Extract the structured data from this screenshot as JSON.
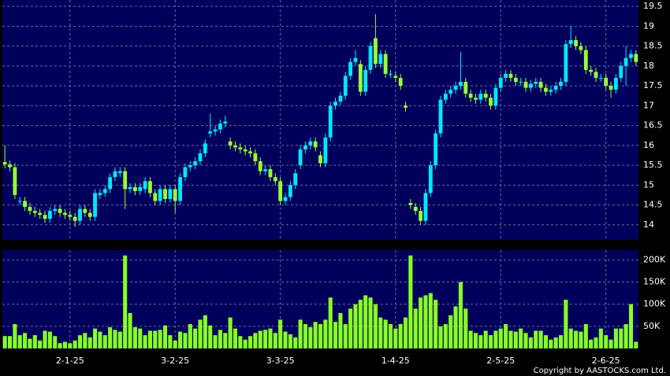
{
  "chart_data": [
    {
      "type": "candlestick",
      "categories": [
        null,
        null,
        null,
        null,
        null,
        null,
        null,
        null,
        null,
        null,
        null,
        null,
        null,
        "2-1-25",
        null,
        null,
        null,
        null,
        null,
        null,
        null,
        null,
        null,
        null,
        null,
        null,
        null,
        null,
        null,
        null,
        null,
        null,
        null,
        null,
        "3-2-25",
        null,
        null,
        null,
        null,
        null,
        null,
        null,
        null,
        null,
        null,
        null,
        null,
        null,
        null,
        null,
        null,
        null,
        null,
        null,
        null,
        "3-3-25",
        null,
        null,
        null,
        null,
        null,
        null,
        null,
        null,
        null,
        null,
        null,
        null,
        null,
        null,
        null,
        null,
        null,
        null,
        null,
        null,
        null,
        null,
        "1-4-25",
        null,
        null,
        null,
        null,
        null,
        null,
        null,
        null,
        null,
        null,
        null,
        null,
        null,
        null,
        null,
        null,
        null,
        null,
        null,
        null,
        "2-5-25",
        null,
        null,
        null,
        null,
        null,
        null,
        null,
        null,
        null,
        null,
        null,
        null,
        null,
        null,
        null,
        null,
        null,
        null,
        null,
        null,
        "2-6-25",
        null,
        null,
        null,
        null,
        null,
        null
      ],
      "open": [
        15.58,
        15.52,
        15.45,
        14.6,
        14.6,
        14.45,
        14.35,
        14.3,
        14.25,
        14.15,
        14.35,
        14.4,
        14.3,
        14.25,
        14.2,
        14.1,
        14.4,
        14.3,
        14.2,
        14.75,
        14.8,
        14.9,
        15.2,
        15.3,
        15.35,
        14.9,
        14.95,
        14.85,
        14.9,
        15.1,
        14.8,
        14.6,
        14.9,
        14.65,
        14.9,
        14.6,
        15.2,
        15.45,
        15.5,
        15.6,
        15.8,
        16.3,
        16.35,
        16.4,
        16.55,
        16.1,
        16.0,
        15.95,
        15.9,
        15.85,
        15.8,
        15.6,
        15.35,
        15.4,
        15.2,
        15.1,
        14.6,
        14.7,
        15.0,
        15.5,
        15.9,
        16.0,
        16.1,
        15.75,
        15.55,
        16.2,
        17.0,
        17.1,
        17.25,
        17.75,
        18.1,
        18.05,
        17.35,
        17.9,
        18.7,
        18.05,
        18.3,
        17.8,
        17.75,
        17.7,
        17.0,
        14.55,
        14.45,
        14.35,
        14.1,
        14.8,
        15.5,
        16.3,
        17.15,
        17.3,
        17.4,
        17.5,
        17.6,
        17.3,
        17.2,
        17.15,
        17.3,
        17.2,
        17.0,
        17.45,
        17.7,
        17.8,
        17.7,
        17.6,
        17.6,
        17.45,
        17.55,
        17.6,
        17.45,
        17.35,
        17.4,
        17.5,
        17.6,
        18.55,
        18.65,
        18.5,
        18.4,
        17.9,
        17.85,
        17.7,
        17.7,
        17.5,
        17.4,
        17.7,
        18.0,
        18.2,
        18.3
      ],
      "high": [
        16.0,
        15.62,
        15.55,
        14.7,
        14.7,
        14.55,
        14.45,
        14.4,
        14.35,
        14.45,
        14.5,
        14.5,
        14.4,
        14.35,
        14.3,
        14.5,
        14.5,
        14.4,
        14.9,
        14.9,
        15.0,
        15.3,
        15.45,
        15.45,
        15.45,
        15.05,
        15.05,
        15.05,
        15.2,
        15.2,
        14.9,
        15.0,
        15.0,
        15.0,
        15.0,
        15.3,
        15.55,
        15.6,
        15.7,
        15.9,
        16.15,
        16.8,
        16.5,
        16.65,
        16.75,
        16.2,
        16.1,
        16.05,
        16.0,
        15.95,
        15.9,
        15.7,
        15.5,
        15.5,
        15.3,
        15.2,
        14.8,
        15.1,
        15.4,
        16.0,
        16.1,
        16.2,
        16.2,
        15.85,
        16.3,
        17.1,
        17.2,
        17.35,
        17.85,
        18.2,
        18.4,
        18.15,
        18.0,
        18.6,
        19.3,
        18.4,
        18.4,
        17.9,
        17.85,
        17.8,
        17.1,
        14.65,
        14.55,
        14.45,
        14.9,
        15.6,
        16.4,
        17.25,
        17.4,
        17.5,
        17.6,
        18.35,
        17.7,
        17.4,
        17.3,
        17.4,
        17.4,
        17.3,
        17.55,
        17.8,
        17.9,
        17.9,
        17.8,
        17.7,
        17.7,
        17.65,
        17.7,
        17.7,
        17.55,
        17.5,
        17.6,
        17.7,
        18.65,
        19.0,
        18.75,
        18.6,
        18.5,
        18.0,
        17.95,
        17.8,
        17.8,
        17.6,
        17.8,
        18.1,
        18.5,
        18.4,
        18.4
      ],
      "low": [
        15.42,
        15.35,
        14.65,
        14.5,
        14.35,
        14.25,
        14.2,
        14.15,
        14.05,
        14.05,
        14.25,
        14.2,
        14.15,
        14.1,
        13.95,
        14.0,
        14.2,
        14.1,
        14.1,
        14.65,
        14.7,
        14.8,
        15.1,
        15.2,
        14.4,
        14.8,
        14.75,
        14.75,
        14.8,
        14.7,
        14.5,
        14.5,
        14.55,
        14.55,
        14.3,
        14.5,
        15.1,
        15.35,
        15.4,
        15.5,
        15.7,
        16.2,
        16.25,
        16.3,
        16.45,
        15.9,
        15.85,
        15.8,
        15.75,
        15.7,
        15.5,
        15.25,
        15.25,
        15.1,
        15.0,
        14.5,
        14.5,
        14.6,
        14.9,
        15.4,
        15.8,
        15.9,
        15.85,
        15.45,
        15.45,
        16.1,
        16.9,
        17.0,
        17.15,
        17.65,
        18.0,
        17.25,
        17.25,
        17.8,
        17.95,
        17.95,
        17.7,
        17.7,
        17.6,
        17.4,
        16.85,
        14.4,
        14.25,
        14.0,
        14.0,
        14.7,
        15.4,
        16.2,
        17.05,
        17.2,
        17.3,
        17.4,
        17.2,
        17.1,
        17.05,
        17.05,
        17.1,
        16.9,
        16.9,
        17.35,
        17.6,
        17.6,
        17.5,
        17.5,
        17.35,
        17.35,
        17.45,
        17.35,
        17.25,
        17.25,
        17.3,
        17.4,
        17.5,
        18.45,
        18.4,
        18.3,
        17.8,
        17.75,
        17.6,
        17.6,
        17.4,
        17.2,
        17.3,
        17.6,
        17.5,
        18.1,
        18.0
      ],
      "close": [
        15.52,
        15.45,
        14.75,
        14.6,
        14.45,
        14.35,
        14.3,
        14.25,
        14.15,
        14.35,
        14.4,
        14.3,
        14.25,
        14.2,
        14.1,
        14.4,
        14.3,
        14.2,
        14.8,
        14.8,
        14.9,
        15.2,
        15.35,
        15.35,
        14.9,
        14.95,
        14.85,
        14.95,
        15.1,
        14.8,
        14.6,
        14.9,
        14.65,
        14.9,
        14.6,
        15.2,
        15.45,
        15.5,
        15.6,
        15.8,
        16.05,
        16.35,
        16.4,
        16.55,
        16.6,
        16.0,
        15.95,
        15.9,
        15.85,
        15.8,
        15.6,
        15.35,
        15.4,
        15.2,
        15.1,
        14.6,
        14.7,
        15.0,
        15.3,
        15.9,
        16.0,
        16.1,
        15.95,
        15.55,
        16.2,
        17.0,
        17.1,
        17.25,
        17.75,
        18.1,
        18.2,
        17.35,
        17.9,
        18.5,
        18.05,
        18.3,
        17.8,
        17.8,
        17.7,
        17.5,
        16.95,
        14.5,
        14.35,
        14.1,
        14.8,
        15.5,
        16.3,
        17.15,
        17.3,
        17.4,
        17.5,
        17.6,
        17.3,
        17.2,
        17.15,
        17.3,
        17.2,
        17.0,
        17.45,
        17.7,
        17.8,
        17.7,
        17.6,
        17.6,
        17.45,
        17.55,
        17.6,
        17.45,
        17.35,
        17.4,
        17.5,
        17.6,
        18.55,
        18.65,
        18.5,
        18.4,
        17.9,
        17.85,
        17.7,
        17.7,
        17.5,
        17.4,
        17.7,
        18.0,
        18.2,
        18.3,
        18.1
      ],
      "up_color": "#00e8ff",
      "down_color": "#99ff33",
      "ylim": [
        13.62,
        19.66
      ],
      "yticks": [
        14,
        14.5,
        15,
        15.5,
        16,
        16.5,
        17,
        17.5,
        18,
        18.5,
        19,
        19.5
      ],
      "grid": true
    },
    {
      "type": "bar",
      "values": [
        28000,
        28000,
        55000,
        30000,
        35000,
        22000,
        30000,
        18000,
        40000,
        38000,
        28000,
        12000,
        15000,
        12000,
        18000,
        30000,
        35000,
        25000,
        45000,
        38000,
        30000,
        48000,
        42000,
        38000,
        210000,
        80000,
        48000,
        45000,
        30000,
        40000,
        40000,
        42000,
        52000,
        30000,
        18000,
        38000,
        35000,
        55000,
        45000,
        65000,
        75000,
        52000,
        30000,
        42000,
        35000,
        70000,
        45000,
        28000,
        20000,
        28000,
        35000,
        40000,
        42000,
        45000,
        35000,
        65000,
        38000,
        32000,
        25000,
        65000,
        55000,
        48000,
        60000,
        55000,
        65000,
        115000,
        60000,
        80000,
        55000,
        90000,
        100000,
        110000,
        120000,
        115000,
        100000,
        70000,
        65000,
        55000,
        45000,
        55000,
        70000,
        210000,
        90000,
        115000,
        120000,
        125000,
        110000,
        50000,
        55000,
        75000,
        95000,
        150000,
        90000,
        40000,
        35000,
        30000,
        40000,
        30000,
        40000,
        45000,
        55000,
        40000,
        38000,
        45000,
        35000,
        25000,
        40000,
        40000,
        30000,
        20000,
        25000,
        30000,
        110000,
        45000,
        40000,
        38000,
        55000,
        20000,
        25000,
        45000,
        30000,
        20000,
        45000,
        45000,
        55000,
        100000,
        15000
      ],
      "color": "#88ff22",
      "ylim": [
        0,
        222000
      ],
      "yticks": [
        {
          "value": 50000,
          "label": "50K"
        },
        {
          "value": 100000,
          "label": "100K"
        },
        {
          "value": 150000,
          "label": "150K"
        },
        {
          "value": 200000,
          "label": "200K"
        }
      ],
      "grid": true
    }
  ],
  "copyright": "Copyright by AASTOCKS.com Ltd."
}
